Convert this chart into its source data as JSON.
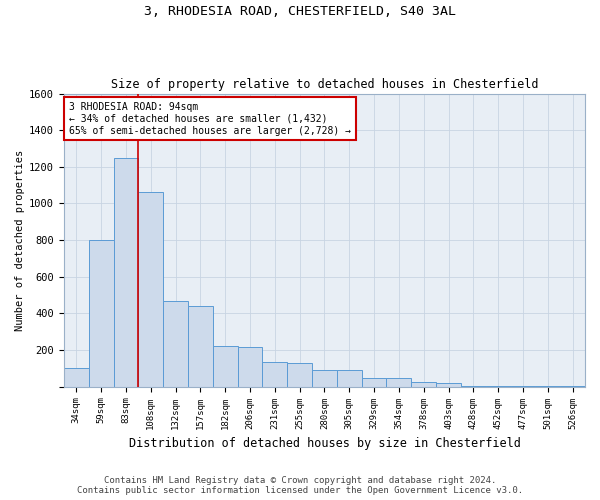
{
  "title1": "3, RHODESIA ROAD, CHESTERFIELD, S40 3AL",
  "title2": "Size of property relative to detached houses in Chesterfield",
  "xlabel": "Distribution of detached houses by size in Chesterfield",
  "ylabel": "Number of detached properties",
  "footer1": "Contains HM Land Registry data © Crown copyright and database right 2024.",
  "footer2": "Contains public sector information licensed under the Open Government Licence v3.0.",
  "categories": [
    "34sqm",
    "59sqm",
    "83sqm",
    "108sqm",
    "132sqm",
    "157sqm",
    "182sqm",
    "206sqm",
    "231sqm",
    "255sqm",
    "280sqm",
    "305sqm",
    "329sqm",
    "354sqm",
    "378sqm",
    "403sqm",
    "428sqm",
    "452sqm",
    "477sqm",
    "501sqm",
    "526sqm"
  ],
  "values": [
    100,
    800,
    1250,
    1060,
    470,
    440,
    220,
    215,
    135,
    130,
    90,
    90,
    50,
    50,
    28,
    22,
    5,
    5,
    5,
    5,
    5
  ],
  "bar_color": "#cddaeb",
  "bar_edge_color": "#5b9bd5",
  "grid_color": "#c8d4e3",
  "background_color": "#e8eef5",
  "property_line_x": 2.5,
  "annotation_line1": "3 RHODESIA ROAD: 94sqm",
  "annotation_line2": "← 34% of detached houses are smaller (1,432)",
  "annotation_line3": "65% of semi-detached houses are larger (2,728) →",
  "annotation_box_color": "#cc0000",
  "ylim": [
    0,
    1600
  ],
  "yticks": [
    0,
    200,
    400,
    600,
    800,
    1000,
    1200,
    1400,
    1600
  ]
}
